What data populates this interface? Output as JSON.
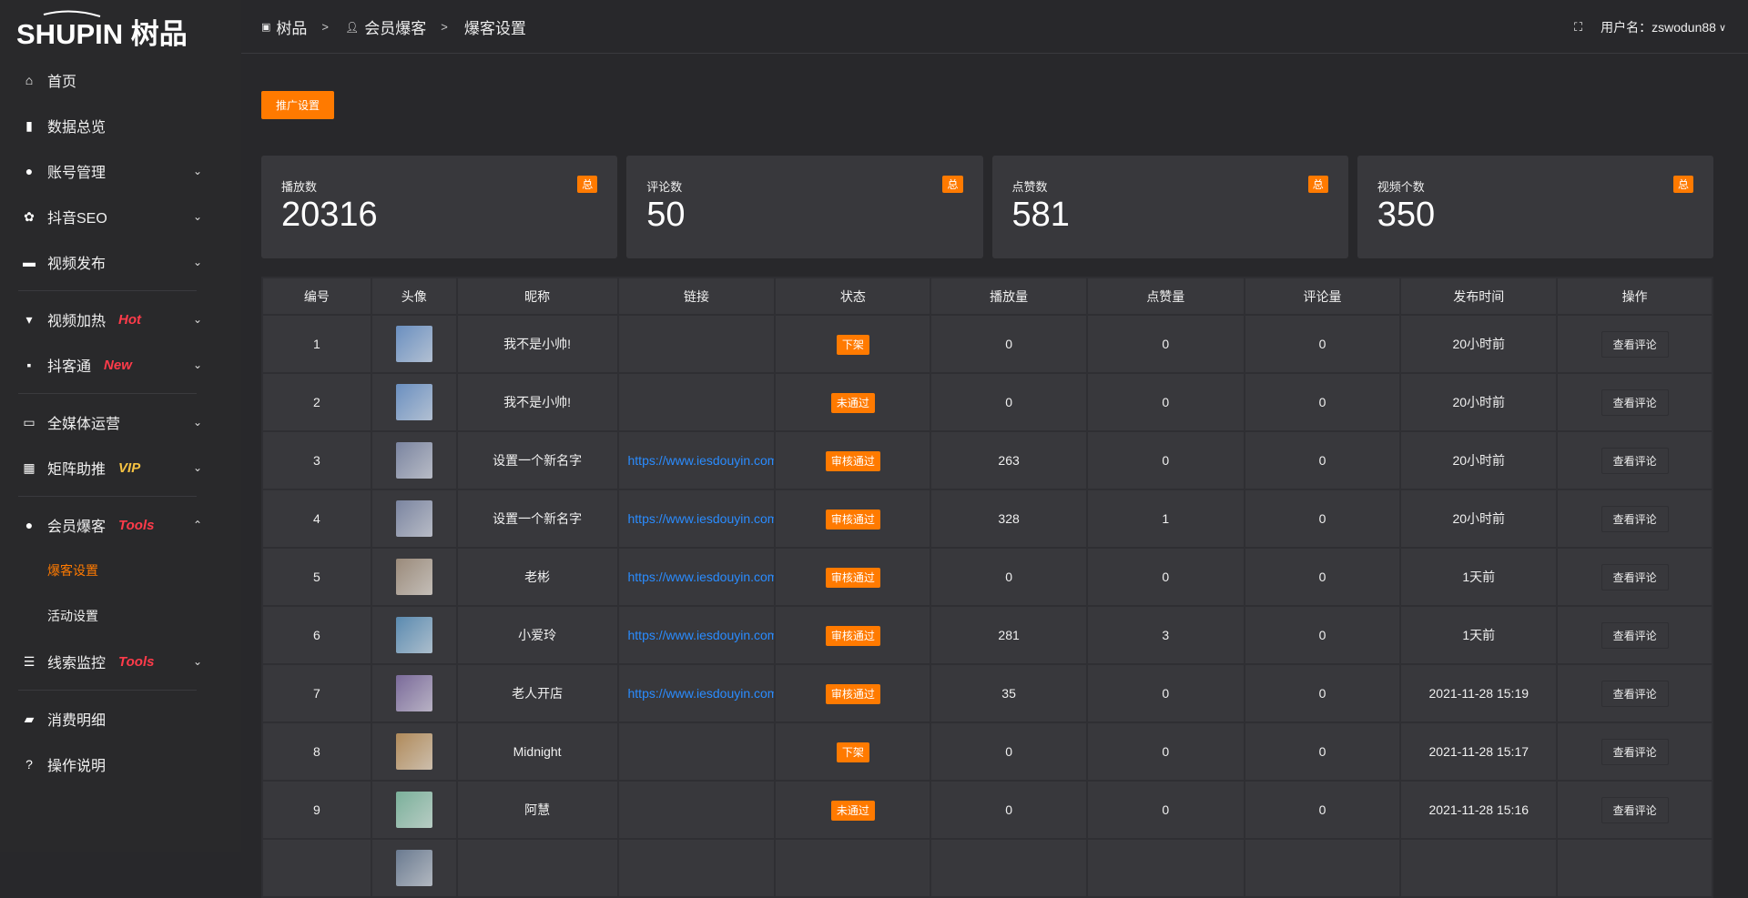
{
  "brand": {
    "logo_text": "SHUPIN 树品"
  },
  "sidebar": {
    "items": [
      {
        "label": "首页",
        "icon": "home-icon",
        "glyph": "⌂"
      },
      {
        "label": "数据总览",
        "icon": "bar-chart-icon",
        "glyph": "▮"
      },
      {
        "label": "账号管理",
        "icon": "user-icon",
        "glyph": "●",
        "chev": "⌄"
      },
      {
        "label": "抖音SEO",
        "icon": "gear-icon",
        "glyph": "✿",
        "chev": "⌄"
      },
      {
        "label": "视频发布",
        "icon": "camera-icon",
        "glyph": "▬",
        "chev": "⌄"
      },
      {
        "label": "视频加热",
        "icon": "sign-icon",
        "glyph": "▾",
        "tag": "Hot",
        "chev": "⌄"
      },
      {
        "label": "抖客通",
        "icon": "chat-icon",
        "glyph": "▪",
        "tag": "New",
        "chev": "⌄"
      },
      {
        "label": "全媒体运营",
        "icon": "monitor-icon",
        "glyph": "▭",
        "chev": "⌄"
      },
      {
        "label": "矩阵助推",
        "icon": "grid-icon",
        "glyph": "▦",
        "tag": "VIP",
        "chev": "⌄"
      },
      {
        "label": "会员爆客",
        "icon": "user-icon",
        "glyph": "●",
        "tag": "Tools",
        "chev": "⌃"
      },
      {
        "label": "爆客设置"
      },
      {
        "label": "活动设置"
      },
      {
        "label": "线索监控",
        "icon": "sliders-icon",
        "glyph": "☰",
        "tag": "Tools",
        "chev": "⌄"
      },
      {
        "label": "消费明细",
        "icon": "wallet-icon",
        "glyph": "▰"
      },
      {
        "label": "操作说明",
        "icon": "help-icon",
        "glyph": "?"
      }
    ]
  },
  "colors": {
    "accent": "#ff7a00",
    "hot": "#ff3b4a",
    "vip": "#f5c242",
    "link": "#2a8cff"
  },
  "header": {
    "breadcrumb": [
      "树品",
      "会员爆客",
      "爆客设置"
    ],
    "sep": ">",
    "username": "用户名：zswodun88"
  },
  "promo_button": "推广设置",
  "stats": [
    {
      "label": "播放数",
      "value": "20316",
      "badge": "总"
    },
    {
      "label": "评论数",
      "value": "50",
      "badge": "总"
    },
    {
      "label": "点赞数",
      "value": "581",
      "badge": "总"
    },
    {
      "label": "视频个数",
      "value": "350",
      "badge": "总"
    }
  ],
  "table": {
    "columns": [
      "编号",
      "头像",
      "昵称",
      "链接",
      "状态",
      "播放量",
      "点赞量",
      "评论量",
      "发布时间",
      "操作"
    ],
    "action": "查看评论",
    "rows": [
      {
        "id": "1",
        "nick": "我不是小帅!",
        "link": "",
        "status": "下架",
        "plays": "0",
        "likes": "0",
        "comments": "0",
        "time": "20小时前",
        "avatar": "#6a8fc0"
      },
      {
        "id": "2",
        "nick": "我不是小帅!",
        "link": "",
        "status": "未通过",
        "plays": "0",
        "likes": "0",
        "comments": "0",
        "time": "20小时前",
        "avatar": "#6a8fc0"
      },
      {
        "id": "3",
        "nick": "设置一个新名字",
        "link": "https://www.iesdouyin.com",
        "status": "审核通过",
        "plays": "263",
        "likes": "0",
        "comments": "0",
        "time": "20小时前",
        "avatar": "#7a84a0"
      },
      {
        "id": "4",
        "nick": "设置一个新名字",
        "link": "https://www.iesdouyin.com",
        "status": "审核通过",
        "plays": "328",
        "likes": "1",
        "comments": "0",
        "time": "20小时前",
        "avatar": "#7a84a0"
      },
      {
        "id": "5",
        "nick": "老彬",
        "link": "https://www.iesdouyin.com",
        "status": "审核通过",
        "plays": "0",
        "likes": "0",
        "comments": "0",
        "time": "1天前",
        "avatar": "#9a8a7a"
      },
      {
        "id": "6",
        "nick": "小爱玲",
        "link": "https://www.iesdouyin.com",
        "status": "审核通过",
        "plays": "281",
        "likes": "3",
        "comments": "0",
        "time": "1天前",
        "avatar": "#5a8ab0"
      },
      {
        "id": "7",
        "nick": "老人开店",
        "link": "https://www.iesdouyin.com",
        "status": "审核通过",
        "plays": "35",
        "likes": "0",
        "comments": "0",
        "time": "2021-11-28 15:19",
        "avatar": "#7a6a9a"
      },
      {
        "id": "8",
        "nick": "Midnight",
        "link": "",
        "status": "下架",
        "plays": "0",
        "likes": "0",
        "comments": "0",
        "time": "2021-11-28 15:17",
        "avatar": "#b08a5a"
      },
      {
        "id": "9",
        "nick": "阿慧",
        "link": "",
        "status": "未通过",
        "plays": "0",
        "likes": "0",
        "comments": "0",
        "time": "2021-11-28 15:16",
        "avatar": "#7ab09a"
      },
      {
        "id": "",
        "nick": "",
        "link": "",
        "status": "",
        "plays": "",
        "likes": "",
        "comments": "",
        "time": "",
        "avatar": "#6a7a90"
      }
    ]
  }
}
